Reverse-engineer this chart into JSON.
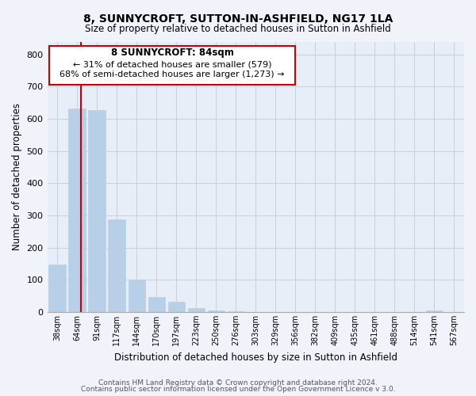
{
  "title": "8, SUNNYCROFT, SUTTON-IN-ASHFIELD, NG17 1LA",
  "subtitle": "Size of property relative to detached houses in Sutton in Ashfield",
  "xlabel": "Distribution of detached houses by size in Sutton in Ashfield",
  "ylabel": "Number of detached properties",
  "bar_labels": [
    "38sqm",
    "64sqm",
    "91sqm",
    "117sqm",
    "144sqm",
    "170sqm",
    "197sqm",
    "223sqm",
    "250sqm",
    "276sqm",
    "303sqm",
    "329sqm",
    "356sqm",
    "382sqm",
    "409sqm",
    "435sqm",
    "461sqm",
    "488sqm",
    "514sqm",
    "541sqm",
    "567sqm"
  ],
  "bar_heights": [
    148,
    632,
    628,
    288,
    100,
    46,
    32,
    12,
    5,
    2,
    1,
    0,
    0,
    0,
    0,
    0,
    0,
    0,
    0,
    5,
    0
  ],
  "bar_color": "#b8cfe8",
  "bar_edge_color": "#b8cfe8",
  "ylim": [
    0,
    840
  ],
  "yticks": [
    0,
    100,
    200,
    300,
    400,
    500,
    600,
    700,
    800
  ],
  "ann_line1": "8 SUNNYCROFT: 84sqm",
  "ann_line2": "← 31% of detached houses are smaller (579)",
  "ann_line3": "68% of semi-detached houses are larger (1,273) →",
  "footer_line1": "Contains HM Land Registry data © Crown copyright and database right 2024.",
  "footer_line2": "Contains public sector information licensed under the Open Government Licence v 3.0.",
  "bg_color": "#f0f4fa",
  "plot_bg_color": "#e8eef8",
  "grid_color": "#c8d0dc",
  "red_line_color": "#cc0000",
  "box_edge_color": "#cc0000",
  "box_face_color": "#ffffff"
}
